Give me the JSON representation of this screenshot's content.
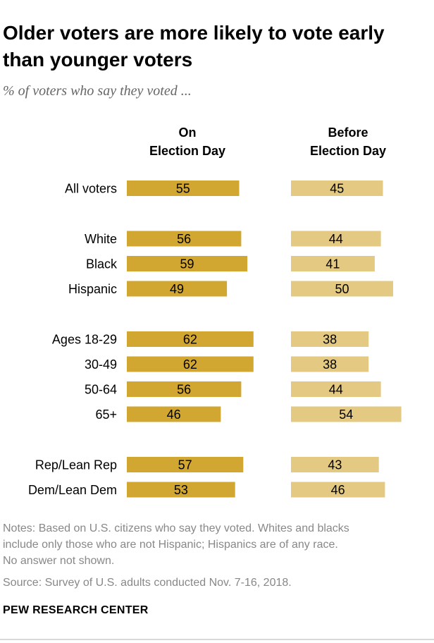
{
  "title": "Older voters are more likely to vote early than younger voters",
  "subtitle": "% of voters who say they voted ...",
  "notes": [
    "Notes: Based on U.S. citizens who say they voted. Whites and blacks",
    "include only those who are not Hispanic; Hispanics are of any race.",
    "No answer not shown."
  ],
  "source": "Source: Survey of U.S. adults conducted Nov. 7-16, 2018.",
  "logo": "PEW RESEARCH CENTER",
  "colors": {
    "election_day": "#d2a731",
    "before_election_day": "#e3c981"
  },
  "chart_data": {
    "type": "bar",
    "title": "Older voters are more likely to vote early than younger voters",
    "subtitle": "% of voters who say they voted ...",
    "categories": [
      "All voters",
      "White",
      "Black",
      "Hispanic",
      "Ages 18-29",
      "30-49",
      "50-64",
      "65+",
      "Rep/Lean Rep",
      "Dem/Lean Dem"
    ],
    "groups": [
      [
        "All voters"
      ],
      [
        "White",
        "Black",
        "Hispanic"
      ],
      [
        "Ages 18-29",
        "30-49",
        "50-64",
        "65+"
      ],
      [
        "Rep/Lean Rep",
        "Dem/Lean Dem"
      ]
    ],
    "series": [
      {
        "name_lines": [
          "On",
          "Election Day"
        ],
        "name": "On Election Day",
        "values": [
          55,
          56,
          59,
          49,
          62,
          62,
          56,
          46,
          57,
          53
        ]
      },
      {
        "name_lines": [
          "Before",
          "Election Day"
        ],
        "name": "Before Election Day",
        "values": [
          45,
          44,
          41,
          50,
          38,
          38,
          44,
          54,
          43,
          46
        ]
      }
    ],
    "xlim": [
      0,
      100
    ],
    "grid": false,
    "legend": "column headers"
  }
}
